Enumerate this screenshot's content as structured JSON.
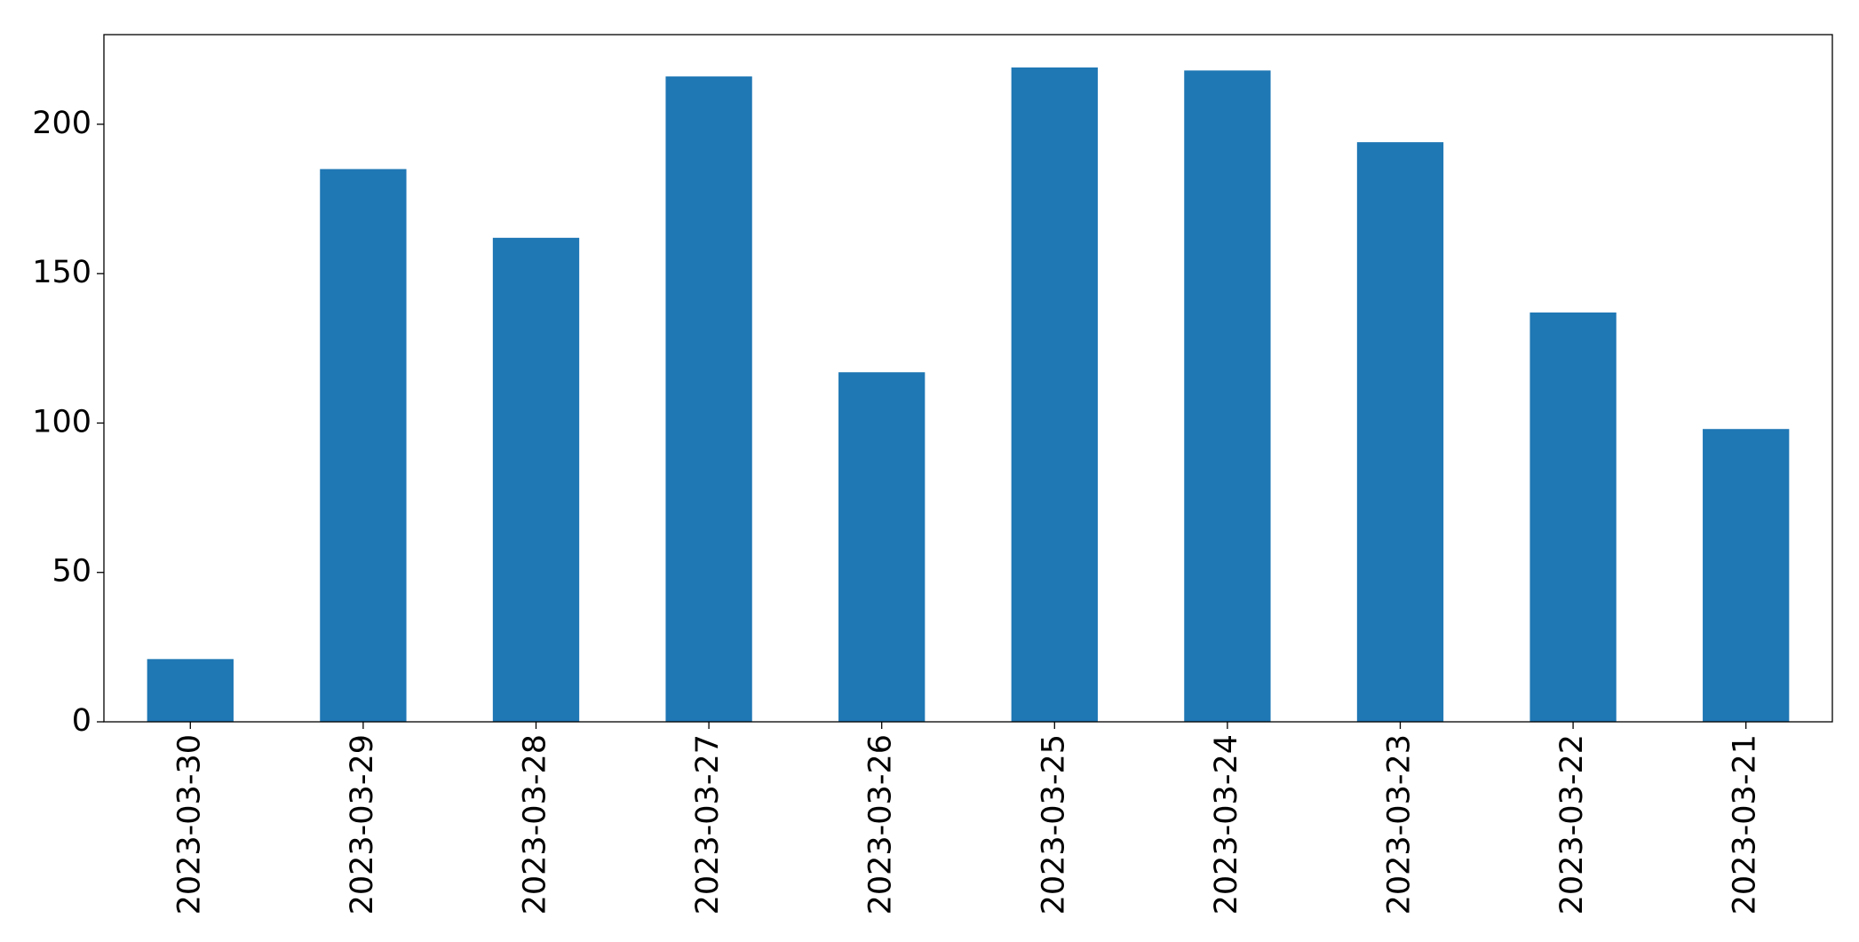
{
  "chart_data": {
    "type": "bar",
    "categories": [
      "2023-03-30",
      "2023-03-29",
      "2023-03-28",
      "2023-03-27",
      "2023-03-26",
      "2023-03-25",
      "2023-03-24",
      "2023-03-23",
      "2023-03-22",
      "2023-03-21"
    ],
    "values": [
      21,
      185,
      162,
      216,
      117,
      219,
      218,
      194,
      137,
      98
    ],
    "color": "#1f77b4",
    "ylim": [
      0,
      230
    ],
    "yticks": [
      0,
      50,
      100,
      150,
      200
    ],
    "grid": false
  }
}
